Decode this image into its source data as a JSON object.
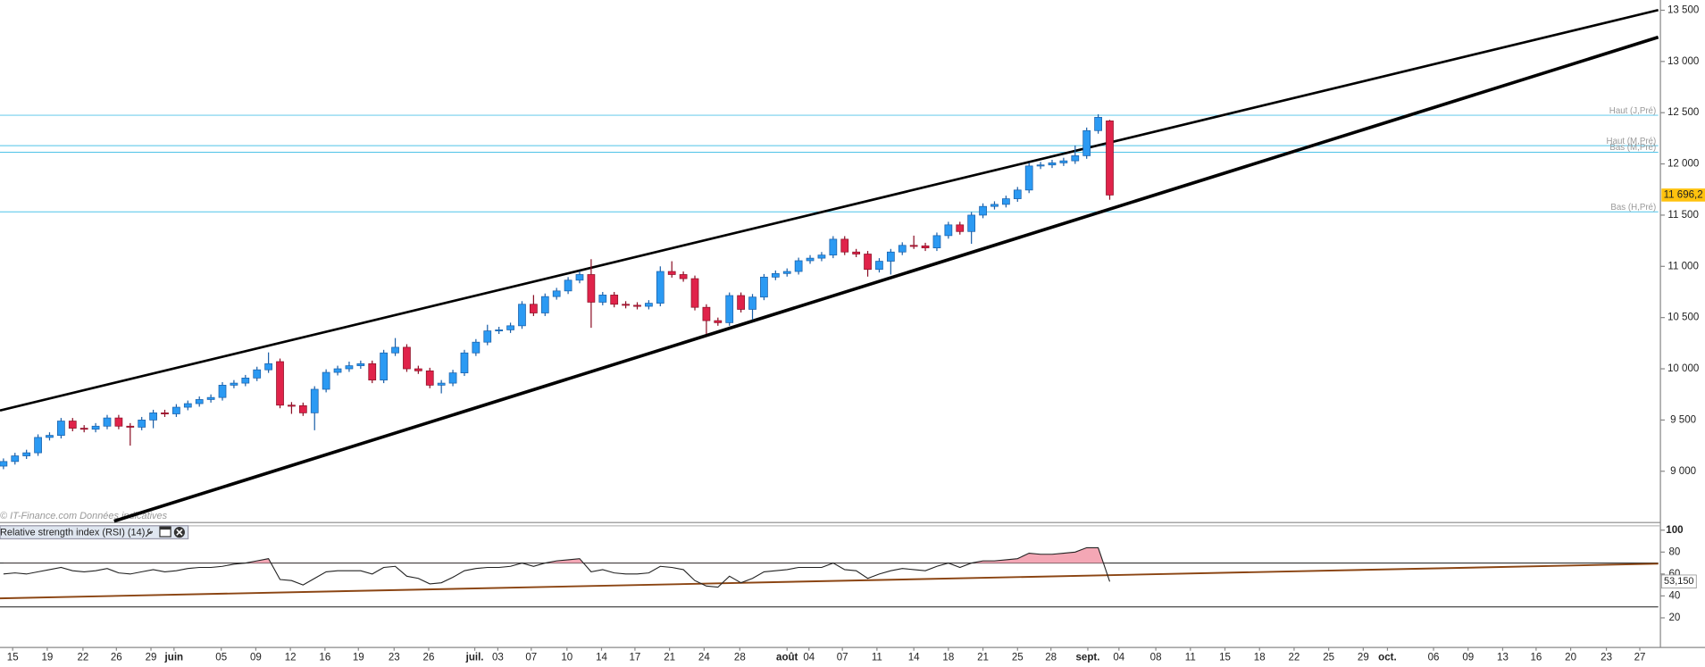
{
  "chart_data": [
    {
      "type": "candlestick",
      "watermark": "© IT-Finance.com  Données indicatives",
      "up_color": "#2b9af3",
      "down_color": "#e0234a",
      "open": [
        9050,
        9095,
        9150,
        9180,
        9330,
        9350,
        9490,
        9420,
        9410,
        9440,
        9520,
        9440,
        9430,
        9500,
        9570,
        9560,
        9625,
        9660,
        9700,
        9720,
        9840,
        9860,
        9910,
        9990,
        10070,
        9645,
        9640,
        9570,
        9800,
        9965,
        10000,
        10030,
        10050,
        9890,
        10155,
        10210,
        10000,
        9980,
        9840,
        9860,
        9960,
        10155,
        10260,
        10370,
        10380,
        10420,
        10630,
        10545,
        10705,
        10760,
        10865,
        10920,
        10650,
        10720,
        10630,
        10620,
        10610,
        10640,
        10950,
        10920,
        10880,
        10600,
        10470,
        10450,
        10715,
        10580,
        10700,
        10895,
        10930,
        10950,
        11055,
        11080,
        11110,
        11265,
        11140,
        11120,
        10970,
        11050,
        11140,
        11205,
        11200,
        11180,
        11300,
        11405,
        11340,
        11500,
        11585,
        11605,
        11660,
        11745,
        11980,
        11990,
        12010,
        12030,
        12080,
        12325,
        12420
      ],
      "high": [
        9125,
        9180,
        9210,
        9360,
        9380,
        9520,
        9520,
        9450,
        9470,
        9550,
        9550,
        9470,
        9530,
        9600,
        9600,
        9655,
        9690,
        9730,
        9750,
        9870,
        9890,
        9940,
        10020,
        10160,
        10100,
        9675,
        9670,
        9830,
        9995,
        10030,
        10070,
        10080,
        10080,
        10185,
        10300,
        10240,
        10030,
        10010,
        9890,
        9990,
        10185,
        10290,
        10430,
        10410,
        10450,
        10660,
        10720,
        10735,
        10790,
        10895,
        10950,
        11070,
        10750,
        10750,
        10660,
        10650,
        10670,
        11000,
        11050,
        10950,
        10910,
        10630,
        10500,
        10745,
        10745,
        10730,
        10925,
        10960,
        10980,
        11085,
        11110,
        11140,
        11295,
        11295,
        11170,
        11150,
        11080,
        11170,
        11235,
        11300,
        11230,
        11330,
        11435,
        11435,
        11530,
        11615,
        11635,
        11690,
        11775,
        12010,
        12020,
        12040,
        12060,
        12180,
        12355,
        12485,
        12430
      ],
      "low": [
        9020,
        9065,
        9120,
        9150,
        9300,
        9320,
        9390,
        9380,
        9380,
        9410,
        9410,
        9250,
        9400,
        9420,
        9530,
        9530,
        9595,
        9630,
        9670,
        9690,
        9810,
        9830,
        9880,
        9960,
        9615,
        9560,
        9540,
        9400,
        9770,
        9935,
        9970,
        10000,
        9860,
        9860,
        10125,
        9970,
        9950,
        9810,
        9760,
        9830,
        9930,
        10125,
        10230,
        10340,
        10350,
        10390,
        10515,
        10515,
        10675,
        10730,
        10835,
        10400,
        10620,
        10600,
        10590,
        10580,
        10580,
        10610,
        10890,
        10850,
        10570,
        10340,
        10420,
        10420,
        10550,
        10480,
        10670,
        10865,
        10900,
        10920,
        11025,
        11050,
        11080,
        11110,
        11090,
        10900,
        10940,
        10920,
        11110,
        11170,
        11150,
        11150,
        11270,
        11310,
        11220,
        11470,
        11555,
        11575,
        11630,
        11715,
        11950,
        11960,
        11980,
        12000,
        12050,
        12295,
        11650
      ],
      "close": [
        9095,
        9150,
        9180,
        9330,
        9350,
        9490,
        9420,
        9410,
        9440,
        9520,
        9440,
        9430,
        9500,
        9570,
        9560,
        9625,
        9660,
        9700,
        9720,
        9840,
        9860,
        9910,
        9990,
        10050,
        9645,
        9640,
        9570,
        9800,
        9965,
        10000,
        10030,
        10050,
        9890,
        10155,
        10210,
        10000,
        9980,
        9840,
        9860,
        9960,
        10155,
        10260,
        10370,
        10380,
        10420,
        10630,
        10545,
        10705,
        10760,
        10865,
        10920,
        10650,
        10720,
        10630,
        10620,
        10610,
        10640,
        10950,
        10920,
        10880,
        10600,
        10470,
        10450,
        10715,
        10580,
        10700,
        10895,
        10930,
        10950,
        11055,
        11080,
        11110,
        11265,
        11140,
        11120,
        10970,
        11050,
        11140,
        11205,
        11200,
        11180,
        11300,
        11405,
        11340,
        11500,
        11585,
        11605,
        11660,
        11745,
        11980,
        11990,
        12010,
        12030,
        12080,
        12325,
        12455,
        11696.2
      ],
      "last_label": "11 696,2",
      "xlim": [
        -0.3,
        143.6
      ],
      "xticks": [
        {
          "value": 0.8,
          "label": "15"
        },
        {
          "value": 3.8,
          "label": "19"
        },
        {
          "value": 6.9,
          "label": "22"
        },
        {
          "value": 9.8,
          "label": "26"
        },
        {
          "value": 12.8,
          "label": "29"
        },
        {
          "value": 14.8,
          "label": "juin"
        },
        {
          "value": 18.9,
          "label": "05"
        },
        {
          "value": 21.9,
          "label": "09"
        },
        {
          "value": 24.9,
          "label": "12"
        },
        {
          "value": 27.9,
          "label": "16"
        },
        {
          "value": 30.8,
          "label": "19"
        },
        {
          "value": 33.9,
          "label": "23"
        },
        {
          "value": 36.9,
          "label": "26"
        },
        {
          "value": 40.9,
          "label": "juil."
        },
        {
          "value": 42.9,
          "label": "03"
        },
        {
          "value": 45.8,
          "label": "07"
        },
        {
          "value": 48.9,
          "label": "10"
        },
        {
          "value": 51.9,
          "label": "14"
        },
        {
          "value": 54.8,
          "label": "17"
        },
        {
          "value": 57.8,
          "label": "21"
        },
        {
          "value": 60.8,
          "label": "24"
        },
        {
          "value": 63.9,
          "label": "28"
        },
        {
          "value": 68.0,
          "label": "août"
        },
        {
          "value": 69.9,
          "label": "04"
        },
        {
          "value": 72.8,
          "label": "07"
        },
        {
          "value": 75.8,
          "label": "11"
        },
        {
          "value": 79.0,
          "label": "14"
        },
        {
          "value": 82.0,
          "label": "18"
        },
        {
          "value": 85.0,
          "label": "21"
        },
        {
          "value": 88.0,
          "label": "25"
        },
        {
          "value": 90.9,
          "label": "28"
        },
        {
          "value": 94.1,
          "label": "sept."
        },
        {
          "value": 96.8,
          "label": "04"
        },
        {
          "value": 100.0,
          "label": "08"
        },
        {
          "value": 103.0,
          "label": "11"
        },
        {
          "value": 106.0,
          "label": "15"
        },
        {
          "value": 109.0,
          "label": "18"
        },
        {
          "value": 112.0,
          "label": "22"
        },
        {
          "value": 115.0,
          "label": "25"
        },
        {
          "value": 118.0,
          "label": "29"
        },
        {
          "value": 120.1,
          "label": "oct."
        },
        {
          "value": 124.1,
          "label": "06"
        },
        {
          "value": 127.1,
          "label": "09"
        },
        {
          "value": 130.1,
          "label": "13"
        },
        {
          "value": 133.0,
          "label": "16"
        },
        {
          "value": 136.0,
          "label": "20"
        },
        {
          "value": 139.1,
          "label": "23"
        },
        {
          "value": 142.0,
          "label": "27"
        }
      ],
      "ylim": [
        8510,
        13600
      ],
      "yticks": [
        {
          "value": 9000,
          "label": "9 000"
        },
        {
          "value": 9500,
          "label": "9 500"
        },
        {
          "value": 10000,
          "label": "10 000"
        },
        {
          "value": 10500,
          "label": "10 500"
        },
        {
          "value": 11000,
          "label": "11 000"
        },
        {
          "value": 11500,
          "label": "11 500"
        },
        {
          "value": 12000,
          "label": "12 000"
        },
        {
          "value": 12500,
          "label": "12 500"
        },
        {
          "value": 13000,
          "label": "13 000"
        },
        {
          "value": 13500,
          "label": "13 500"
        }
      ],
      "trendlines": [
        {
          "x": [
            -0.3,
            143.6
          ],
          "values": [
            9593,
            13502
          ]
        },
        {
          "x": [
            9.6,
            143.6
          ],
          "values": [
            8513,
            13237
          ]
        }
      ],
      "levels": [
        {
          "name": "Haut (J,Pré)",
          "value": 12475
        },
        {
          "name": "Haut (M,Pré)",
          "value": 12178
        },
        {
          "name": "Bas (M,Pré)",
          "value": 12114
        },
        {
          "name": "Bas (H,Pré)",
          "value": 11532
        }
      ],
      "level_color": "#4fc3e8"
    },
    {
      "type": "line",
      "title": "Relative strength index (RSI) (14)",
      "color": "#222222",
      "values": [
        60,
        61,
        60,
        62,
        64,
        66,
        63,
        62,
        63,
        65,
        61,
        60,
        62,
        64,
        62,
        63,
        65,
        66,
        66,
        67,
        69,
        70,
        72,
        74,
        55,
        54,
        50,
        56,
        62,
        63,
        63,
        63,
        60,
        66,
        67,
        58,
        56,
        51,
        52,
        57,
        63,
        65,
        66,
        66,
        67,
        70,
        67,
        70,
        72,
        73,
        74,
        62,
        64,
        61,
        60,
        60,
        61,
        67,
        66,
        64,
        54,
        49,
        48,
        58,
        52,
        56,
        62,
        63,
        64,
        66,
        66,
        66,
        70,
        64,
        63,
        56,
        60,
        63,
        65,
        64,
        63,
        67,
        70,
        66,
        70,
        72,
        72,
        73,
        74,
        79,
        78,
        78,
        79,
        80,
        84,
        84,
        53.15
      ],
      "last_label": "53,150",
      "ylim": [
        -7,
        104
      ],
      "yticks": [
        20,
        40,
        60,
        80,
        100
      ],
      "bands": [
        30,
        70
      ],
      "trendline": {
        "x": [
          -0.3,
          143.6
        ],
        "values": [
          37.8,
          69.4
        ],
        "color": "#8b4513"
      }
    }
  ]
}
